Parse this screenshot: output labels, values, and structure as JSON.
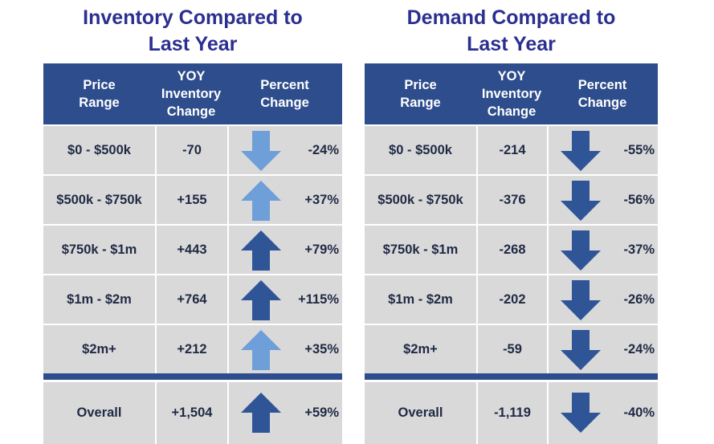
{
  "colors": {
    "title": "#2b2f8f",
    "header_bg": "#2e4d8d",
    "row_bg": "#d9d9d9",
    "arrow_dark": "#2f5597",
    "arrow_light": "#6f9fd8"
  },
  "inventory": {
    "title_line1": "Inventory Compared to",
    "title_line2": "Last Year",
    "headers": {
      "price_range": "Price\nRange",
      "yoy": "YOY\nInventory\nChange",
      "percent": "Percent\nChange"
    },
    "rows": [
      {
        "range": "$0 - $500k",
        "yoy": "-70",
        "pct": "-24%",
        "arrow": "down",
        "shade": "light"
      },
      {
        "range": "$500k - $750k",
        "yoy": "+155",
        "pct": "+37%",
        "arrow": "up",
        "shade": "light"
      },
      {
        "range": "$750k - $1m",
        "yoy": "+443",
        "pct": "+79%",
        "arrow": "up",
        "shade": "dark"
      },
      {
        "range": "$1m - $2m",
        "yoy": "+764",
        "pct": "+115%",
        "arrow": "up",
        "shade": "dark"
      },
      {
        "range": "$2m+",
        "yoy": "+212",
        "pct": "+35%",
        "arrow": "up",
        "shade": "light"
      }
    ],
    "overall": {
      "range": "Overall",
      "yoy": "+1,504",
      "pct": "+59%",
      "arrow": "up",
      "shade": "dark"
    }
  },
  "demand": {
    "title_line1": "Demand Compared to",
    "title_line2": "Last Year",
    "headers": {
      "price_range": "Price\nRange",
      "yoy": "YOY\nInventory\nChange",
      "percent": "Percent\nChange"
    },
    "rows": [
      {
        "range": "$0 - $500k",
        "yoy": "-214",
        "pct": "-55%",
        "arrow": "down",
        "shade": "dark"
      },
      {
        "range": "$500k - $750k",
        "yoy": "-376",
        "pct": "-56%",
        "arrow": "down",
        "shade": "dark"
      },
      {
        "range": "$750k - $1m",
        "yoy": "-268",
        "pct": "-37%",
        "arrow": "down",
        "shade": "dark"
      },
      {
        "range": "$1m - $2m",
        "yoy": "-202",
        "pct": "-26%",
        "arrow": "down",
        "shade": "dark"
      },
      {
        "range": "$2m+",
        "yoy": "-59",
        "pct": "-24%",
        "arrow": "down",
        "shade": "dark"
      }
    ],
    "overall": {
      "range": "Overall",
      "yoy": "-1,119",
      "pct": "-40%",
      "arrow": "down",
      "shade": "dark"
    }
  }
}
